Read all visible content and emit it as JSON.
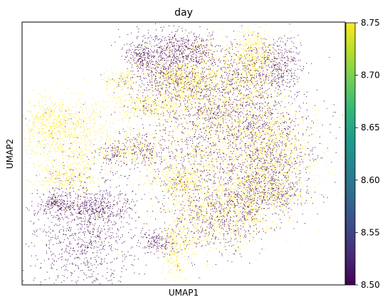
{
  "chart_data": {
    "type": "scatter",
    "title": "day",
    "xlabel": "UMAP1",
    "ylabel": "UMAP2",
    "x_ticks": [],
    "y_ticks": [],
    "grid": false,
    "colorbar": {
      "colormap": "viridis",
      "range": [
        8.5,
        8.75
      ],
      "ticks": [
        "8.50",
        "8.55",
        "8.60",
        "8.65",
        "8.70",
        "8.75"
      ],
      "colors": [
        "#440154",
        "#482878",
        "#3e4a89",
        "#31688e",
        "#26828e",
        "#1f9e89",
        "#35b779",
        "#6ece58",
        "#b5de2b",
        "#fde725"
      ]
    },
    "point_colors": {
      "low": "#440154",
      "high": "#fde725"
    }
  }
}
